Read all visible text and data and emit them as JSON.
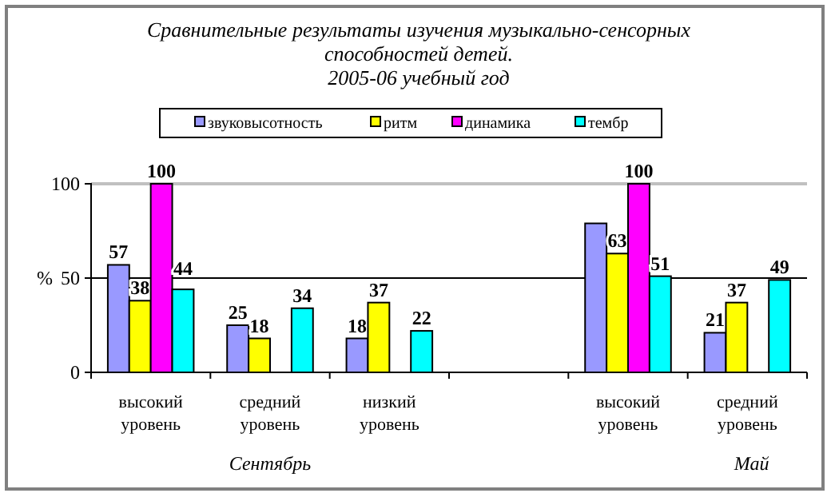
{
  "chart_data": {
    "type": "bar",
    "title": "Сравнительные результаты изучения музыкально-сенсорных\nспособностей детей.\n2005-06 учебный год",
    "categories": [
      "высокий уровень",
      "средний уровень",
      "низкий уровень",
      null,
      "высокий уровень",
      "средний уровень"
    ],
    "series": [
      {
        "name": "звуковысотность",
        "color": "#9999ff",
        "values": [
          57,
          25,
          18,
          null,
          79,
          21
        ],
        "value_labels": [
          "57",
          "25",
          "18",
          null,
          null,
          "21"
        ]
      },
      {
        "name": "ритм",
        "color": "#ffff00",
        "values": [
          38,
          18,
          37,
          null,
          63,
          37
        ],
        "value_labels": [
          "38",
          "18",
          "37",
          null,
          "63",
          "37"
        ]
      },
      {
        "name": "динамика",
        "color": "#ff00ff",
        "values": [
          100,
          null,
          null,
          null,
          100,
          null
        ],
        "value_labels": [
          "100",
          null,
          null,
          null,
          "100",
          null
        ]
      },
      {
        "name": "тембр",
        "color": "#00ffff",
        "values": [
          44,
          34,
          22,
          null,
          51,
          49
        ],
        "value_labels": [
          "44",
          "34",
          "22",
          null,
          "51",
          "49"
        ]
      }
    ],
    "ylabel": "%",
    "ylim": [
      0,
      100
    ],
    "yticks": [
      0,
      50,
      100
    ],
    "legend": "top",
    "ref_lines": [
      {
        "axis": "y",
        "value": 100,
        "color": "#c0c0c0"
      },
      {
        "axis": "y",
        "value": 50,
        "color": "#000000"
      }
    ],
    "annotations": [
      "Сентябрь",
      "Май"
    ]
  }
}
